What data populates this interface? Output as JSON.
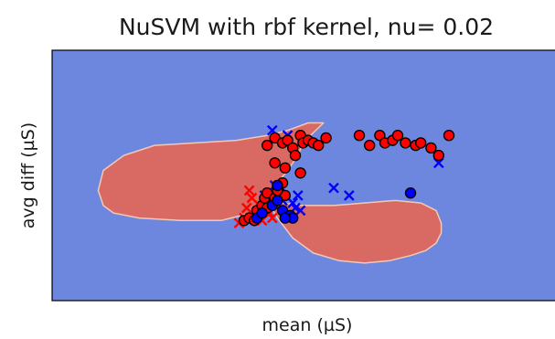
{
  "chart_data": {
    "type": "scatter",
    "title": "NuSVM with rbf kernel, nu= 0.02",
    "xlabel": "mean (µS)",
    "ylabel": "avg diff (µS)",
    "xlim": [
      0,
      100
    ],
    "ylim": [
      0,
      100
    ],
    "show_ticks": false,
    "grid": false,
    "colors": {
      "background_region": "#6e87de",
      "decision_region": "#d96a63",
      "region_edge": "#f2c9b8",
      "class_red": "#ff0000",
      "class_blue": "#0000ff",
      "marker_edge": "#000000"
    },
    "decision_regions": [
      {
        "name": "left-lobe",
        "points": [
          [
            10,
            38
          ],
          [
            9,
            44
          ],
          [
            10,
            52
          ],
          [
            14,
            58
          ],
          [
            20,
            62
          ],
          [
            28,
            63
          ],
          [
            36,
            64
          ],
          [
            42,
            66
          ],
          [
            46,
            68
          ],
          [
            50,
            71
          ],
          [
            53,
            71
          ],
          [
            51,
            67
          ],
          [
            49,
            63
          ],
          [
            48,
            58
          ],
          [
            46,
            52
          ],
          [
            44,
            47
          ],
          [
            42,
            40
          ],
          [
            39,
            35
          ],
          [
            33,
            32
          ],
          [
            25,
            32
          ],
          [
            17,
            33
          ],
          [
            12,
            35
          ]
        ]
      },
      {
        "name": "right-lobe",
        "points": [
          [
            42,
            40
          ],
          [
            44,
            33
          ],
          [
            47,
            25
          ],
          [
            51,
            19
          ],
          [
            56,
            16
          ],
          [
            61,
            15
          ],
          [
            66,
            16
          ],
          [
            70,
            18
          ],
          [
            73,
            20
          ],
          [
            75,
            23
          ],
          [
            76,
            27
          ],
          [
            76,
            31
          ],
          [
            75,
            36
          ],
          [
            72,
            39
          ],
          [
            67,
            40
          ],
          [
            61,
            39
          ],
          [
            55,
            38
          ],
          [
            49,
            38
          ],
          [
            45,
            39
          ]
        ]
      }
    ],
    "series": [
      {
        "class": "red",
        "kind": "circle",
        "points": [
          [
            37.5,
            32
          ],
          [
            38.5,
            33
          ],
          [
            39.5,
            32
          ],
          [
            40,
            36
          ],
          [
            41,
            38
          ],
          [
            41.5,
            41
          ],
          [
            42,
            37
          ],
          [
            42,
            43
          ],
          [
            43.5,
            41
          ],
          [
            44.5,
            43
          ],
          [
            45.5,
            42
          ],
          [
            42,
            62
          ],
          [
            43.5,
            65
          ],
          [
            45,
            63
          ],
          [
            46,
            64
          ],
          [
            47,
            61
          ],
          [
            48.5,
            66
          ],
          [
            49,
            63
          ],
          [
            50,
            64
          ],
          [
            51,
            63
          ],
          [
            52,
            62
          ],
          [
            53.5,
            65
          ],
          [
            47.5,
            58
          ],
          [
            43.5,
            55
          ],
          [
            45.5,
            53
          ],
          [
            48.5,
            51
          ],
          [
            45,
            47
          ],
          [
            44,
            44
          ],
          [
            60,
            66
          ],
          [
            62,
            62
          ],
          [
            64,
            66
          ],
          [
            65,
            63
          ],
          [
            66.5,
            64
          ],
          [
            67.5,
            66
          ],
          [
            69,
            63
          ],
          [
            71,
            62
          ],
          [
            72,
            63
          ],
          [
            74,
            61
          ],
          [
            75.5,
            58
          ],
          [
            77.5,
            66
          ]
        ]
      },
      {
        "class": "red",
        "kind": "x",
        "points": [
          [
            36.5,
            31
          ],
          [
            37.5,
            33
          ],
          [
            38,
            37
          ],
          [
            39.5,
            33
          ],
          [
            40.5,
            38
          ],
          [
            41,
            32
          ],
          [
            42.5,
            35
          ],
          [
            43,
            33
          ],
          [
            38.5,
            44
          ],
          [
            39,
            41
          ]
        ]
      },
      {
        "class": "blue",
        "kind": "circle",
        "points": [
          [
            40,
            33
          ],
          [
            41,
            35
          ],
          [
            43,
            38
          ],
          [
            44,
            40
          ],
          [
            45,
            36
          ],
          [
            46.5,
            34
          ],
          [
            47,
            33
          ],
          [
            44,
            46
          ],
          [
            45.5,
            33
          ],
          [
            70,
            43
          ]
        ]
      },
      {
        "class": "blue",
        "kind": "x",
        "points": [
          [
            43,
            68
          ],
          [
            46,
            66
          ],
          [
            43.5,
            46
          ],
          [
            48,
            42
          ],
          [
            45,
            40
          ],
          [
            47,
            39
          ],
          [
            55,
            45
          ],
          [
            58,
            42
          ],
          [
            75.5,
            55
          ],
          [
            47.5,
            37
          ],
          [
            48.5,
            36
          ],
          [
            41.5,
            42
          ]
        ]
      }
    ]
  }
}
